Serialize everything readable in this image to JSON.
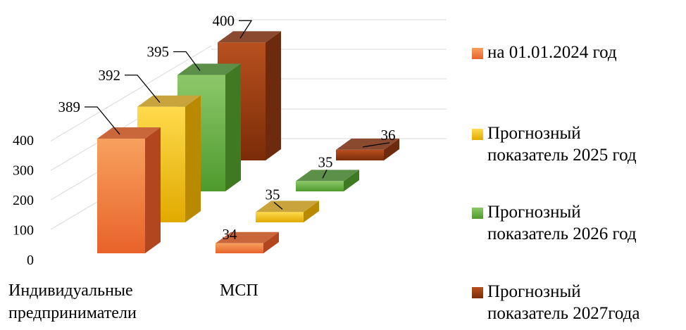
{
  "chart_data": {
    "type": "bar",
    "categories": [
      "Индивидуальные\nпредприниматели",
      "МСП"
    ],
    "series": [
      {
        "name": "на 01.01.2024 год",
        "values": [
          389,
          34
        ]
      },
      {
        "name": "Прогнозный\nпоказатель 2025 год",
        "values": [
          392,
          35
        ]
      },
      {
        "name": "Прогнозный\nпоказатель 2026 год",
        "values": [
          395,
          35
        ]
      },
      {
        "name": "Прогнозный\nпоказатель 2027года",
        "values": [
          400,
          36
        ]
      }
    ],
    "y_ticks": [
      "0",
      "100",
      "200",
      "300",
      "400"
    ],
    "ylim": [
      0,
      400
    ],
    "grid": true,
    "legend_position": "right",
    "style": "3d-clustered-column"
  },
  "colors": {
    "series": [
      {
        "front": [
          "#f7a15e",
          "#e8622a"
        ],
        "top": "#c9663a",
        "side": "#b2461e"
      },
      {
        "front": [
          "#ffda4c",
          "#e0aa00"
        ],
        "top": "#c9a43c",
        "side": "#b98a00"
      },
      {
        "front": [
          "#8cc86a",
          "#4e9a2c"
        ],
        "top": "#5c8f47",
        "side": "#3f7a22"
      },
      {
        "front": [
          "#b8501e",
          "#7a2c08"
        ],
        "top": "#8a4a30",
        "side": "#6e2a0c"
      }
    ],
    "gridline": "#d9d9d9"
  }
}
